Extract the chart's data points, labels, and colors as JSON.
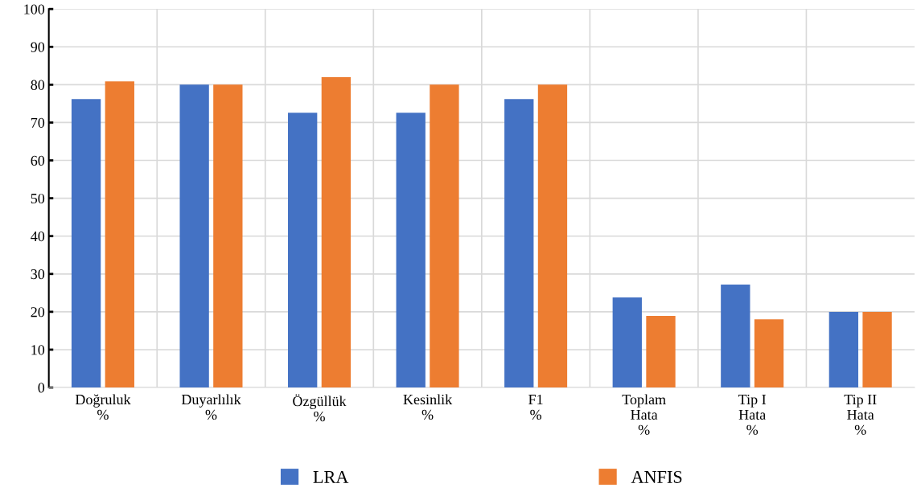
{
  "chart_data": {
    "type": "bar",
    "categories": [
      "Doğruluk\n%",
      "Duyarlılık\n%",
      "Özgüllük\n%",
      "Kesinlik\n%",
      "F1\n%",
      "Toplam\nHata\n%",
      "Tip I\nHata\n%",
      "Tip II\nHata\n%"
    ],
    "series": [
      {
        "name": "LRA",
        "color": "#4472c4",
        "values": [
          76.2,
          80,
          72.6,
          72.6,
          76.2,
          23.8,
          27.2,
          20
        ]
      },
      {
        "name": "ANFIS",
        "color": "#ed7d31",
        "values": [
          80.9,
          80,
          82,
          80,
          80,
          18.9,
          18,
          20
        ]
      }
    ],
    "ylim": [
      0,
      100
    ],
    "yticks": [
      0,
      10,
      20,
      30,
      40,
      50,
      60,
      70,
      80,
      90,
      100
    ],
    "grid": true,
    "legend": "bottom"
  }
}
